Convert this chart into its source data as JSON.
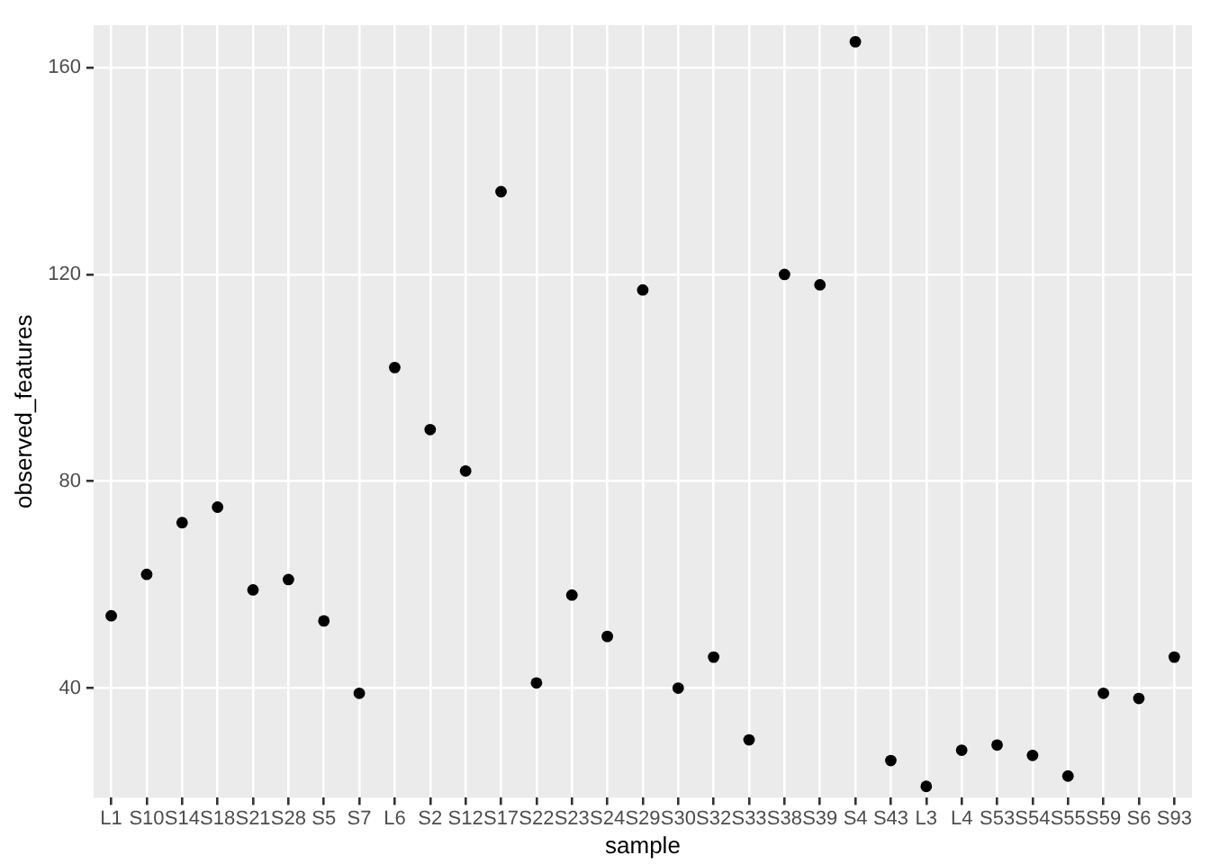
{
  "chart_data": {
    "type": "scatter",
    "xlabel": "sample",
    "ylabel": "observed_features",
    "categories": [
      "L1",
      "S10",
      "S14",
      "S18",
      "S21",
      "S28",
      "S5",
      "S7",
      "L6",
      "S2",
      "S12",
      "S17",
      "S22",
      "S23",
      "S24",
      "S29",
      "S30",
      "S32",
      "S33",
      "S38",
      "S39",
      "S4",
      "S43",
      "L3",
      "L4",
      "S53",
      "S54",
      "S55",
      "S59",
      "S6",
      "S93"
    ],
    "series": [
      {
        "color": "#000000",
        "values": [
          54,
          62,
          72,
          75,
          59,
          61,
          53,
          39,
          102,
          90,
          82,
          136,
          41,
          58,
          50,
          117,
          40,
          46,
          30,
          120,
          118,
          165,
          26,
          21,
          28,
          29,
          27,
          23,
          39,
          38,
          46
        ]
      }
    ],
    "ylim": [
      18.8,
      168.2
    ],
    "yticks": [
      40,
      80,
      120,
      160
    ],
    "grid": true,
    "marker": "circle",
    "legend": false
  }
}
